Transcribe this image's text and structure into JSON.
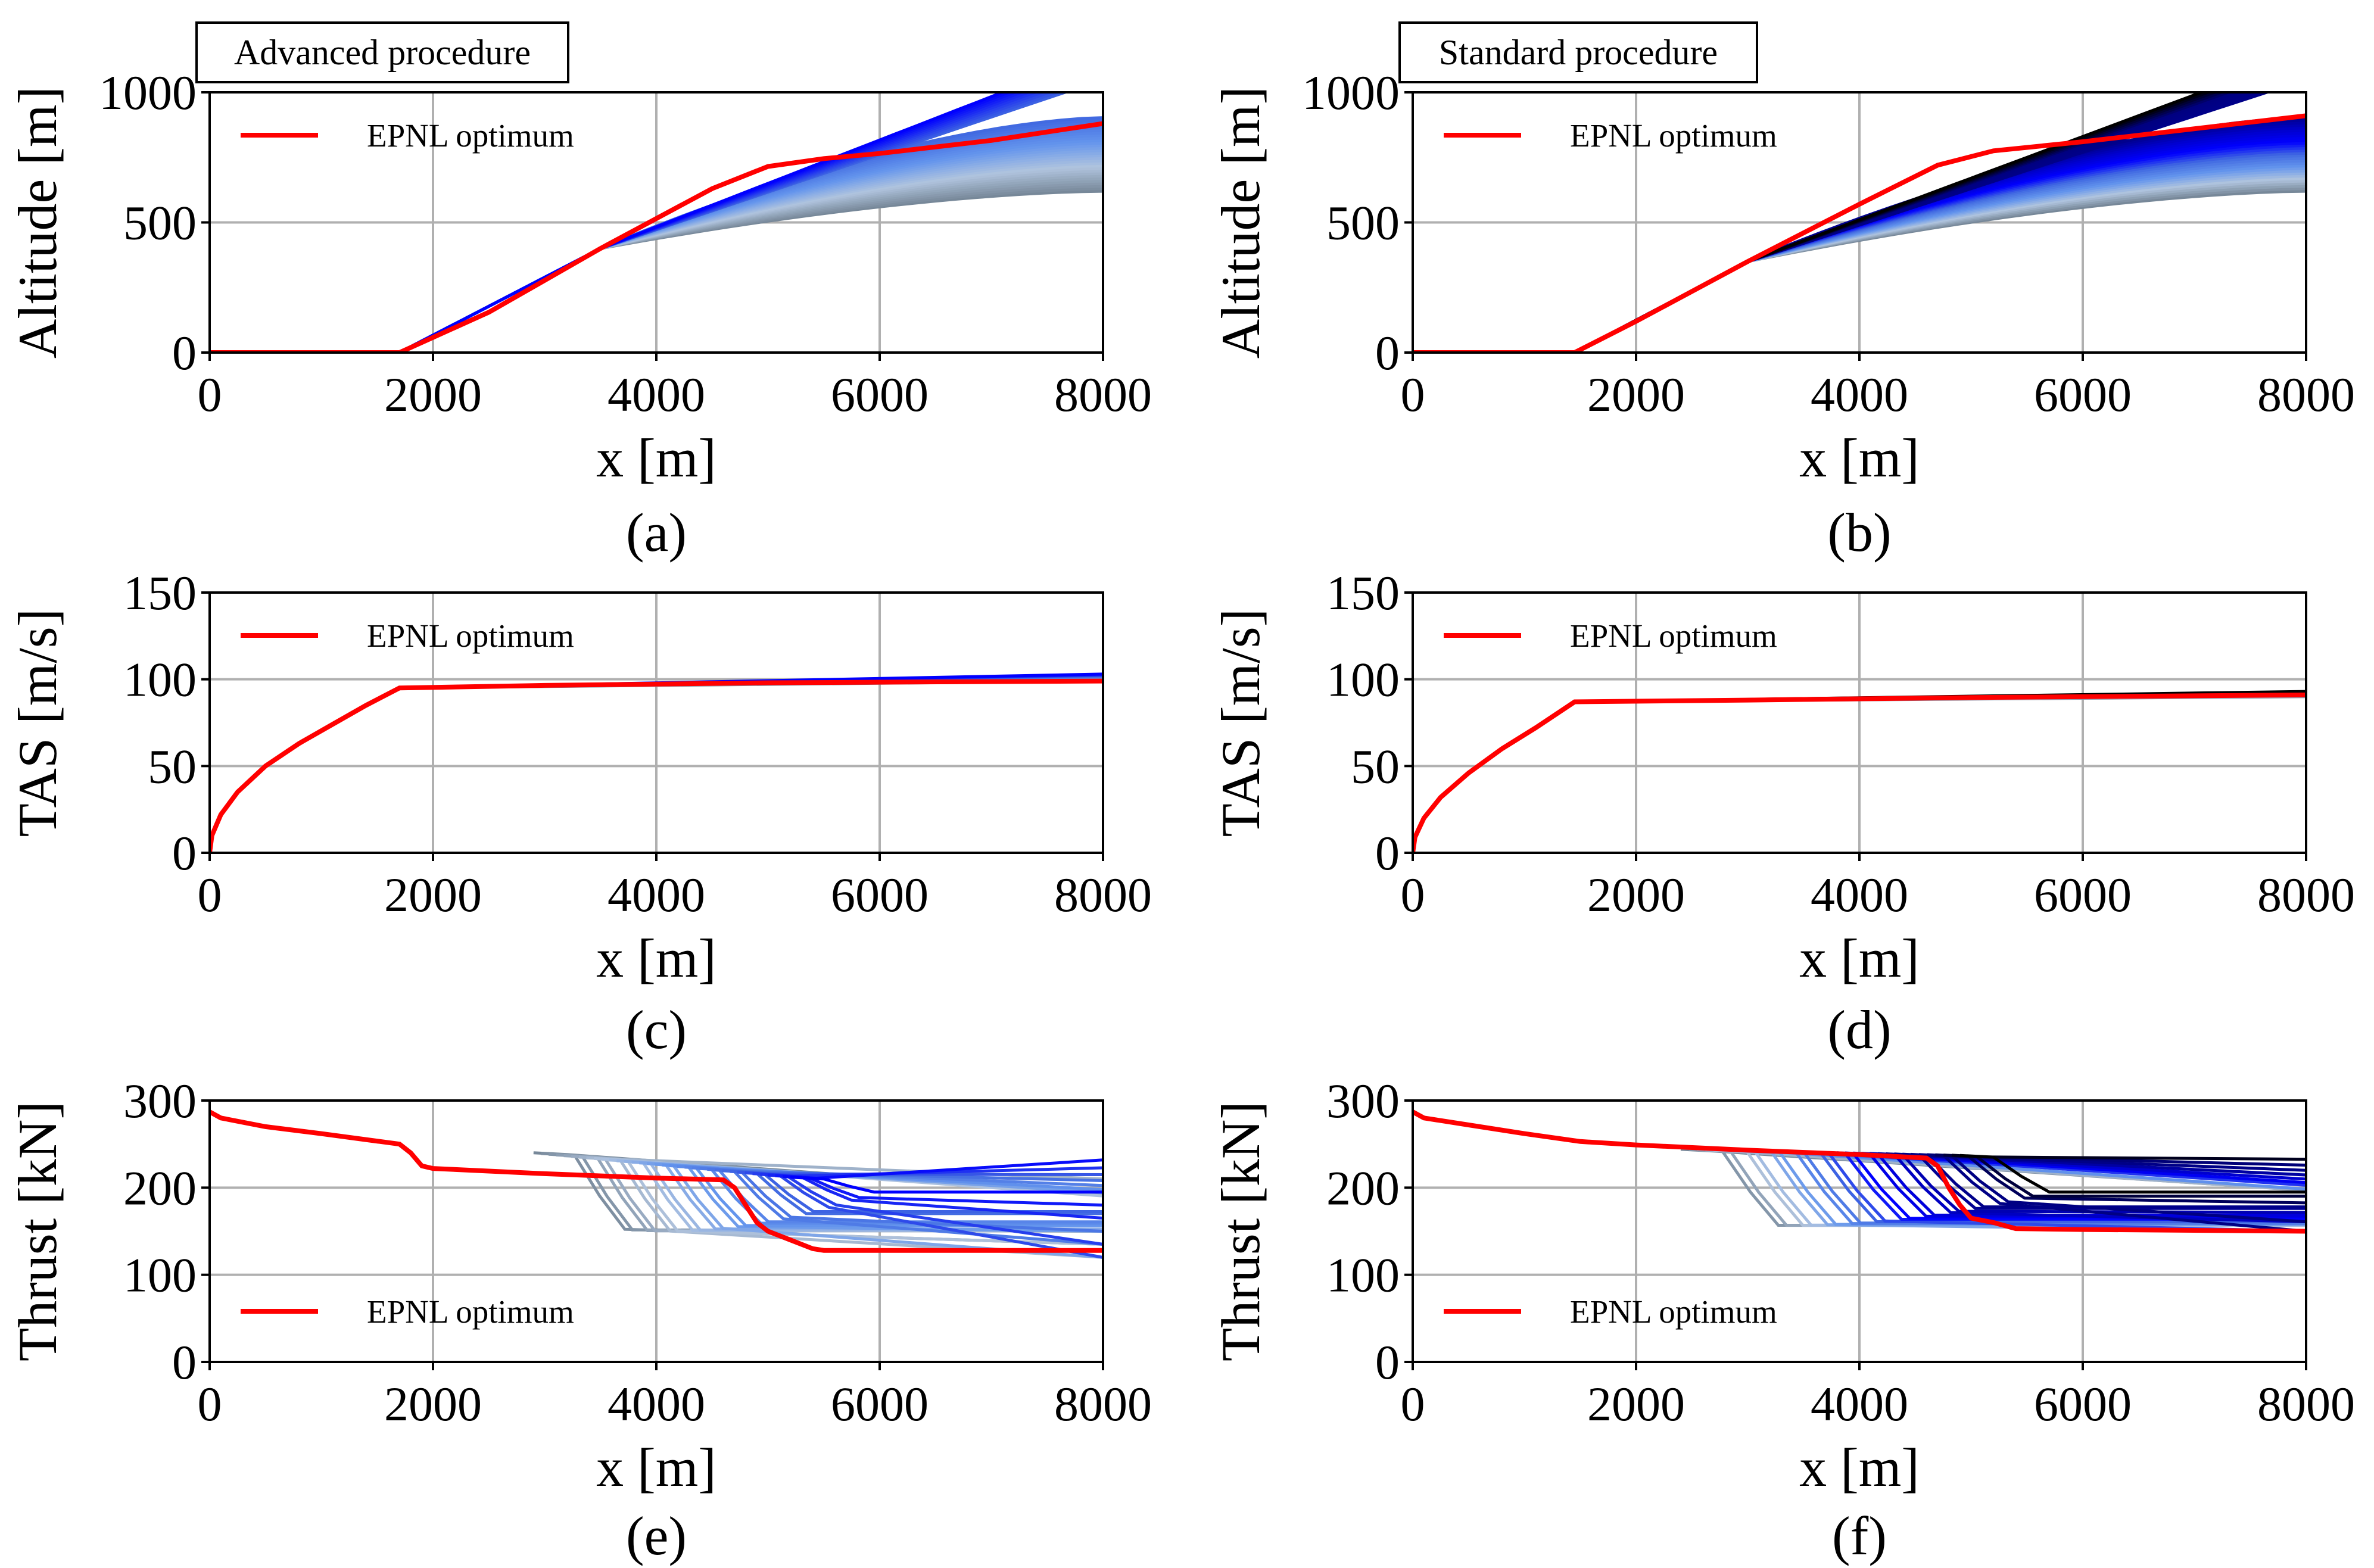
{
  "figure": {
    "panels": [
      {
        "id": "a",
        "box_label": "Advanced procedure",
        "caption": "(a)",
        "legend": "EPNL optimum"
      },
      {
        "id": "b",
        "box_label": "Standard procedure",
        "caption": "(b)",
        "legend": "EPNL optimum"
      },
      {
        "id": "c",
        "box_label": "",
        "caption": "(c)",
        "legend": "EPNL optimum"
      },
      {
        "id": "d",
        "box_label": "",
        "caption": "(d)",
        "legend": "EPNL optimum"
      },
      {
        "id": "e",
        "box_label": "",
        "caption": "(e)",
        "legend": "EPNL optimum"
      },
      {
        "id": "f",
        "box_label": "",
        "caption": "(f)",
        "legend": "EPNL optimum"
      }
    ]
  },
  "colors": {
    "optimum": "#ff0000",
    "grid": "#b0b0b0",
    "family": [
      "#778899",
      "#b0c4de",
      "#6495ed",
      "#4169e1",
      "#0000ff",
      "#0000cd",
      "#00008b",
      "#000080",
      "#000000"
    ]
  },
  "chart_data": [
    {
      "id": "a",
      "type": "line",
      "title": "Advanced procedure",
      "xlabel": "x [m]",
      "ylabel": "Altitude [m]",
      "xlim": [
        0,
        8000
      ],
      "ylim": [
        0,
        1000
      ],
      "xticks": [
        0,
        2000,
        4000,
        6000,
        8000
      ],
      "yticks": [
        0,
        500,
        1000
      ],
      "series": [
        {
          "name": "EPNL optimum",
          "x": [
            0,
            1700,
            2500,
            3500,
            4500,
            5000,
            5500,
            6000,
            7000,
            8000
          ],
          "y": [
            0,
            0,
            155,
            400,
            630,
            715,
            745,
            765,
            815,
            880
          ]
        }
      ],
      "family": {
        "description": "parametric trajectories",
        "count": 40,
        "branch_x": 3500,
        "branch_y": 400,
        "x_end": 8000,
        "end_y_range": [
          620,
          1000
        ],
        "palette": "advanced"
      }
    },
    {
      "id": "b",
      "type": "line",
      "title": "Standard procedure",
      "xlabel": "x [m]",
      "ylabel": "Altitude [m]",
      "xlim": [
        0,
        8000
      ],
      "ylim": [
        0,
        1000
      ],
      "xticks": [
        0,
        2000,
        4000,
        6000,
        8000
      ],
      "yticks": [
        0,
        500,
        1000
      ],
      "series": [
        {
          "name": "EPNL optimum",
          "x": [
            0,
            1450,
            2000,
            3000,
            4000,
            4700,
            5200,
            6000,
            7000,
            8000
          ],
          "y": [
            0,
            0,
            120,
            350,
            570,
            720,
            775,
            810,
            860,
            910
          ]
        }
      ],
      "family": {
        "description": "parametric trajectories",
        "count": 40,
        "branch_x": 3000,
        "branch_y": 350,
        "x_end": 8000,
        "end_y_range": [
          620,
          1000
        ],
        "palette": "standard"
      }
    },
    {
      "id": "c",
      "type": "line",
      "xlabel": "x [m]",
      "ylabel": "TAS [m/s]",
      "xlim": [
        0,
        8000
      ],
      "ylim": [
        0,
        150
      ],
      "xticks": [
        0,
        2000,
        4000,
        6000,
        8000
      ],
      "yticks": [
        0,
        50,
        100,
        150
      ],
      "series": [
        {
          "name": "EPNL optimum",
          "x": [
            0,
            20,
            100,
            250,
            500,
            800,
            1100,
            1400,
            1700,
            3000,
            5000,
            8000
          ],
          "y": [
            0,
            10,
            22,
            35,
            50,
            63,
            74,
            85,
            95,
            96.5,
            98,
            99
          ]
        }
      ],
      "family": {
        "count": 12,
        "x_start": 1700,
        "y_start": 95,
        "x_end": 8000,
        "end_y_range": [
          99,
          103
        ],
        "palette": "advanced"
      }
    },
    {
      "id": "d",
      "type": "line",
      "xlabel": "x [m]",
      "ylabel": "TAS [m/s]",
      "xlim": [
        0,
        8000
      ],
      "ylim": [
        0,
        150
      ],
      "xticks": [
        0,
        2000,
        4000,
        6000,
        8000
      ],
      "yticks": [
        0,
        50,
        100,
        150
      ],
      "series": [
        {
          "name": "EPNL optimum",
          "x": [
            0,
            20,
            100,
            250,
            500,
            800,
            1100,
            1450,
            3000,
            5000,
            8000
          ],
          "y": [
            0,
            9,
            20,
            32,
            46,
            60,
            72,
            87,
            88,
            89.5,
            91
          ]
        }
      ],
      "family": {
        "count": 12,
        "x_start": 1450,
        "y_start": 87,
        "x_end": 8000,
        "end_y_range": [
          90,
          93
        ],
        "palette": "standard"
      }
    },
    {
      "id": "e",
      "type": "line",
      "xlabel": "x [m]",
      "ylabel": "Thrust [kN]",
      "xlim": [
        0,
        8000
      ],
      "ylim": [
        0,
        300
      ],
      "xticks": [
        0,
        2000,
        4000,
        6000,
        8000
      ],
      "yticks": [
        0,
        100,
        200,
        300
      ],
      "series": [
        {
          "name": "EPNL optimum",
          "x": [
            0,
            100,
            500,
            1000,
            1700,
            1800,
            1900,
            2000,
            3000,
            4000,
            4600,
            4700,
            4800,
            4900,
            5000,
            5200,
            5400,
            5500,
            8000
          ],
          "y": [
            287,
            280,
            270,
            262,
            250,
            240,
            225,
            222,
            216,
            211,
            209,
            200,
            180,
            160,
            150,
            140,
            130,
            128,
            128
          ]
        }
      ],
      "family": {
        "count": 35,
        "drop_x_range": [
          3200,
          5500
        ],
        "drop_width": 450,
        "drop_depth": [
          15,
          85
        ],
        "start_y_range": [
          210,
          238
        ],
        "end_y_range": [
          120,
          210
        ],
        "palette": "advanced"
      }
    },
    {
      "id": "f",
      "type": "line",
      "xlabel": "x [m]",
      "ylabel": "Thrust [kN]",
      "xlim": [
        0,
        8000
      ],
      "ylim": [
        0,
        300
      ],
      "xticks": [
        0,
        2000,
        4000,
        6000,
        8000
      ],
      "yticks": [
        0,
        100,
        200,
        300
      ],
      "series": [
        {
          "name": "EPNL optimum",
          "x": [
            0,
            100,
            500,
            1000,
            1500,
            2000,
            3000,
            4000,
            4600,
            4700,
            4800,
            4900,
            5000,
            5200,
            5400,
            6000,
            8000
          ],
          "y": [
            287,
            280,
            272,
            262,
            253,
            249,
            243,
            238,
            234,
            225,
            200,
            180,
            165,
            160,
            153,
            152,
            150
          ]
        }
      ],
      "family": {
        "count": 35,
        "drop_x_range": [
          2700,
          5200
        ],
        "drop_width": 500,
        "drop_depth": [
          40,
          85
        ],
        "start_y_range": [
          235,
          242
        ],
        "end_y_range": [
          150,
          215
        ],
        "palette": "standard"
      }
    }
  ]
}
